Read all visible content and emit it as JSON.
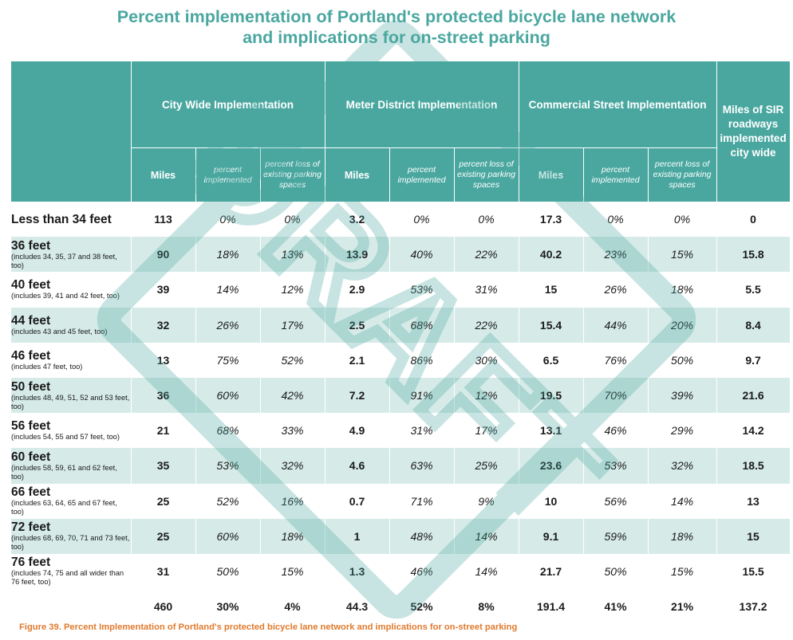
{
  "title": {
    "line1": "Percent implementation of Portland's protected bicycle lane network",
    "line2": "and implications for on-street parking"
  },
  "groups": {
    "city": "City Wide Implementation",
    "meter": "Meter District Implementation",
    "commercial": "Commercial Street Implementation",
    "sir": "Miles of SIR roadways implemented city wide"
  },
  "subheaders": {
    "miles": "Miles",
    "percent": "percent implemented",
    "loss": "percent loss of existing parking spaces"
  },
  "rows": [
    {
      "label": "Less than 34 feet",
      "sub": "",
      "cells": [
        "113",
        "0%",
        "0%",
        "3.2",
        "0%",
        "0%",
        "17.3",
        "0%",
        "0%",
        "0"
      ]
    },
    {
      "label": "36 feet",
      "sub": "(includes 34, 35, 37 and 38 feet, too)",
      "cells": [
        "90",
        "18%",
        "13%",
        "13.9",
        "40%",
        "22%",
        "40.2",
        "23%",
        "15%",
        "15.8"
      ]
    },
    {
      "label": "40 feet",
      "sub": "(includes 39, 41 and 42 feet, too)",
      "cells": [
        "39",
        "14%",
        "12%",
        "2.9",
        "53%",
        "31%",
        "15",
        "26%",
        "18%",
        "5.5"
      ]
    },
    {
      "label": "44 feet",
      "sub": "(includes 43 and 45 feet, too)",
      "cells": [
        "32",
        "26%",
        "17%",
        "2.5",
        "68%",
        "22%",
        "15.4",
        "44%",
        "20%",
        "8.4"
      ]
    },
    {
      "label": "46 feet",
      "sub": "(includes 47 feet, too)",
      "cells": [
        "13",
        "75%",
        "52%",
        "2.1",
        "86%",
        "30%",
        "6.5",
        "76%",
        "50%",
        "9.7"
      ]
    },
    {
      "label": "50 feet",
      "sub": "(includes 48, 49, 51, 52 and 53 feet, too)",
      "cells": [
        "36",
        "60%",
        "42%",
        "7.2",
        "91%",
        "12%",
        "19.5",
        "70%",
        "39%",
        "21.6"
      ]
    },
    {
      "label": "56 feet",
      "sub": "(includes 54, 55 and 57 feet, too)",
      "cells": [
        "21",
        "68%",
        "33%",
        "4.9",
        "31%",
        "17%",
        "13.1",
        "46%",
        "29%",
        "14.2"
      ]
    },
    {
      "label": "60 feet",
      "sub": "(includes 58, 59, 61 and 62 feet, too)",
      "cells": [
        "35",
        "53%",
        "32%",
        "4.6",
        "63%",
        "25%",
        "23.6",
        "53%",
        "32%",
        "18.5"
      ]
    },
    {
      "label": "66 feet",
      "sub": "(includes 63, 64, 65 and 67 feet, too)",
      "cells": [
        "25",
        "52%",
        "16%",
        "0.7",
        "71%",
        "9%",
        "10",
        "56%",
        "14%",
        "13"
      ]
    },
    {
      "label": "72 feet",
      "sub": "(includes 68, 69, 70, 71 and 73 feet, too)",
      "cells": [
        "25",
        "60%",
        "18%",
        "1",
        "48%",
        "14%",
        "9.1",
        "59%",
        "18%",
        "15"
      ]
    },
    {
      "label": "76 feet",
      "sub": "(includes 74, 75 and all wider than 76 feet, too)",
      "cells": [
        "31",
        "50%",
        "15%",
        "1.3",
        "46%",
        "14%",
        "21.7",
        "50%",
        "15%",
        "15.5"
      ]
    }
  ],
  "totals": [
    "460",
    "30%",
    "4%",
    "44.3",
    "52%",
    "8%",
    "191.4",
    "41%",
    "21%",
    "137.2"
  ],
  "caption": "Figure 39.  Percent Implementation of Portland's protected bicycle lane network and implications for on-street parking",
  "watermark": "DRAFT",
  "colors": {
    "header": "#4aa7a0",
    "band": "#d6ebe8",
    "caption": "#e07a2d",
    "watermark": "#4aa7a0"
  }
}
